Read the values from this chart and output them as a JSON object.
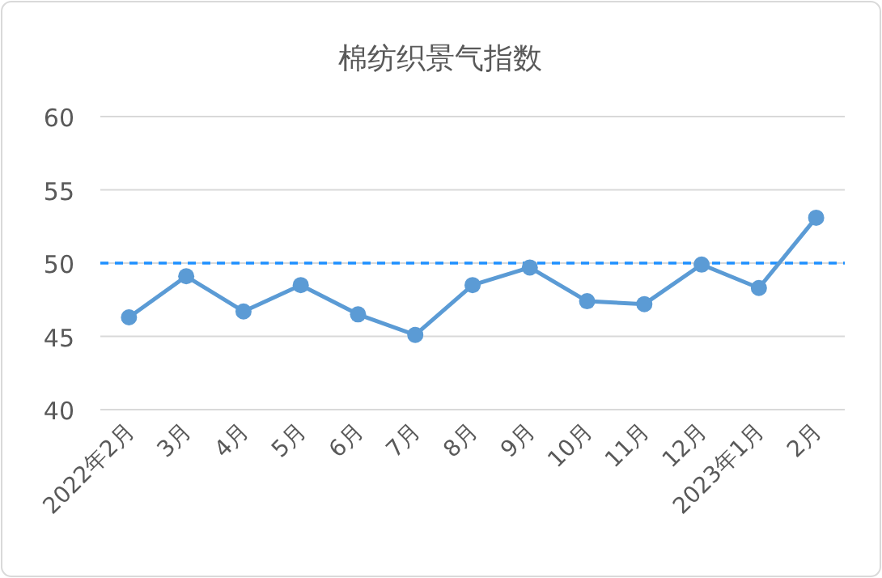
{
  "chart_data": {
    "type": "line",
    "title": "棉纺织景气指数",
    "categories": [
      "2022年2月",
      "3月",
      "4月",
      "5月",
      "6月",
      "7月",
      "8月",
      "9月",
      "10月",
      "11月",
      "12月",
      "2023年1月",
      "2月"
    ],
    "series": [
      {
        "color": "#5b9bd5",
        "values": [
          46.3,
          49.1,
          46.7,
          48.5,
          46.5,
          45.1,
          48.5,
          49.7,
          47.4,
          47.2,
          49.9,
          48.3,
          53.1
        ]
      }
    ],
    "ylim": [
      40,
      60
    ],
    "yticks": [
      40,
      45,
      50,
      55,
      60
    ],
    "grid": "y",
    "marker": "circle",
    "line_style": "solid",
    "ref_lines": [
      {
        "axis": "y",
        "value": 50,
        "color": "#1e90ff",
        "line_style": "dashed"
      }
    ]
  }
}
